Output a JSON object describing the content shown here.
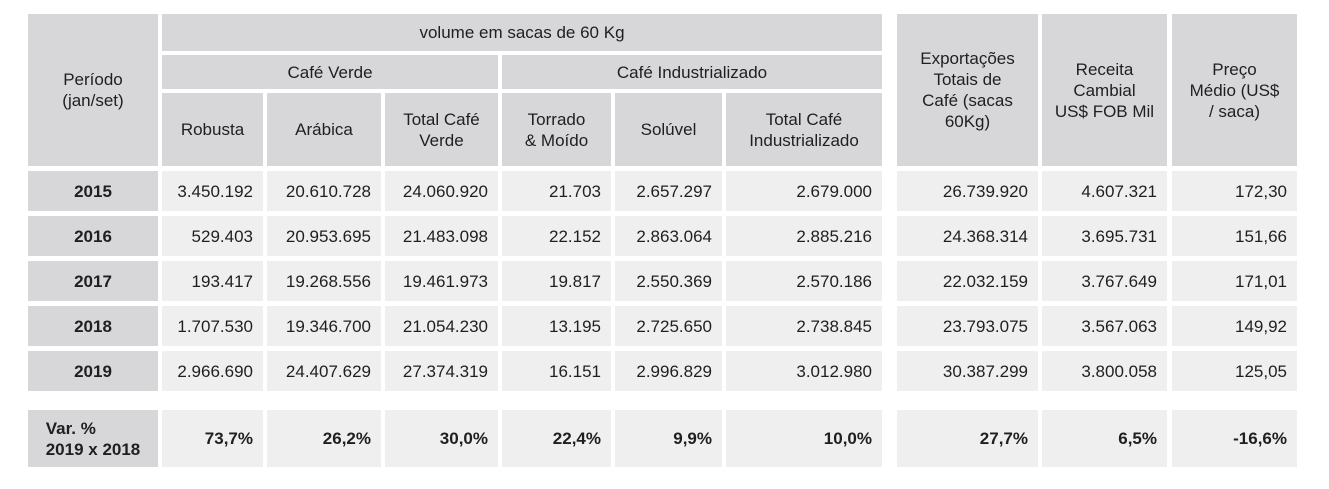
{
  "header": {
    "period": "Período\n(jan/set)",
    "volume": "volume em sacas de 60 Kg",
    "cafe_verde": "Café Verde",
    "cafe_industrializado": "Café Industrializado",
    "robusta": "Robusta",
    "arabica": "Arábica",
    "total_cafe_verde": "Total Café\nVerde",
    "torrado_moido": "Torrado\n& Moído",
    "soluvel": "Solúvel",
    "total_cafe_industrializado": "Total Café\nIndustrializado",
    "exportacoes": "Exportações\nTotais de\nCafé (sacas\n60Kg)",
    "receita": "Receita\nCambial\nUS$ FOB Mil",
    "preco": "Preço\nMédio (US$\n/ saca)"
  },
  "rows": [
    {
      "period": "2015",
      "robusta": "3.450.192",
      "arabica": "20.610.728",
      "total_verde": "24.060.920",
      "torrado": "21.703",
      "soluvel": "2.657.297",
      "total_ind": "2.679.000",
      "exportacoes": "26.739.920",
      "receita": "4.607.321",
      "preco": "172,30"
    },
    {
      "period": "2016",
      "robusta": "529.403",
      "arabica": "20.953.695",
      "total_verde": "21.483.098",
      "torrado": "22.152",
      "soluvel": "2.863.064",
      "total_ind": "2.885.216",
      "exportacoes": "24.368.314",
      "receita": "3.695.731",
      "preco": "151,66"
    },
    {
      "period": "2017",
      "robusta": "193.417",
      "arabica": "19.268.556",
      "total_verde": "19.461.973",
      "torrado": "19.817",
      "soluvel": "2.550.369",
      "total_ind": "2.570.186",
      "exportacoes": "22.032.159",
      "receita": "3.767.649",
      "preco": "171,01"
    },
    {
      "period": "2018",
      "robusta": "1.707.530",
      "arabica": "19.346.700",
      "total_verde": "21.054.230",
      "torrado": "13.195",
      "soluvel": "2.725.650",
      "total_ind": "2.738.845",
      "exportacoes": "23.793.075",
      "receita": "3.567.063",
      "preco": "149,92"
    },
    {
      "period": "2019",
      "robusta": "2.966.690",
      "arabica": "24.407.629",
      "total_verde": "27.374.319",
      "torrado": "16.151",
      "soluvel": "2.996.829",
      "total_ind": "3.012.980",
      "exportacoes": "30.387.299",
      "receita": "3.800.058",
      "preco": "125,05"
    }
  ],
  "variation": {
    "label": "Var. %\n2019 x 2018",
    "robusta": "73,7%",
    "arabica": "26,2%",
    "total_verde": "30,0%",
    "torrado": "22,4%",
    "soluvel": "9,9%",
    "total_ind": "10,0%",
    "exportacoes": "27,7%",
    "receita": "6,5%",
    "preco": "-16,6%"
  },
  "colors": {
    "header_bg": "#d7d7d9",
    "cell_bg": "#efeff0"
  }
}
